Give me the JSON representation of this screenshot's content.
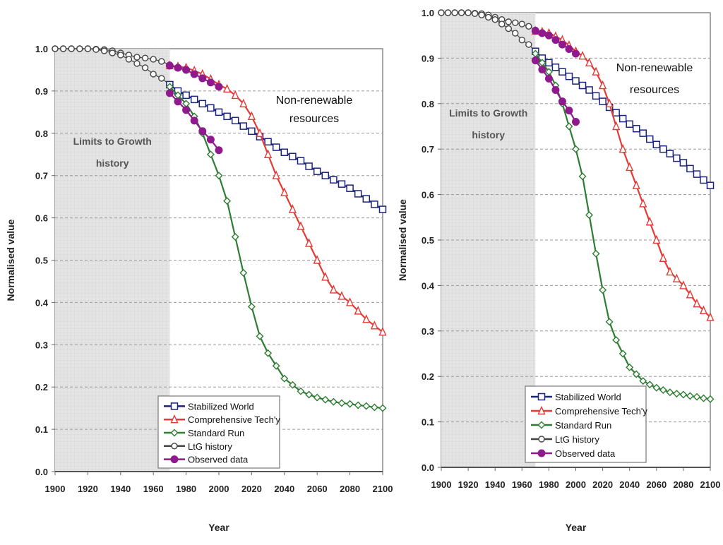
{
  "chart_data": [
    {
      "id": "left",
      "type": "line",
      "title": "",
      "xlabel": "Year",
      "ylabel": "Normalised value",
      "xlim": [
        1900,
        2100
      ],
      "ylim": [
        0.0,
        1.0
      ],
      "x_ticks": [
        "1900",
        "1920",
        "1940",
        "1960",
        "1980",
        "2000",
        "2020",
        "2040",
        "2060",
        "2080",
        "2100"
      ],
      "y_ticks": [
        "0.0",
        "0.1",
        "0.2",
        "0.3",
        "0.4",
        "0.5",
        "0.6",
        "0.7",
        "0.8",
        "0.9",
        "1.0"
      ],
      "grid": "horizontal dashed",
      "legend_position": "bottom-center",
      "annotations": {
        "panel_title_line1": "Non-renewable",
        "panel_title_line2": "resources",
        "shaded_region_label_line1": "Limits to Growth",
        "shaded_region_label_line2": "history",
        "shaded_region_range": [
          1900,
          1970
        ]
      },
      "series": [
        {
          "name": "Stabilized World",
          "color": "#1a237e",
          "marker": "square",
          "x": [
            1970,
            1975,
            1980,
            1985,
            1990,
            1995,
            2000,
            2005,
            2010,
            2015,
            2020,
            2025,
            2030,
            2035,
            2040,
            2045,
            2050,
            2055,
            2060,
            2065,
            2070,
            2075,
            2080,
            2085,
            2090,
            2095,
            2100
          ],
          "y": [
            0.915,
            0.9,
            0.89,
            0.88,
            0.87,
            0.86,
            0.85,
            0.84,
            0.83,
            0.817,
            0.805,
            0.792,
            0.78,
            0.767,
            0.755,
            0.745,
            0.735,
            0.722,
            0.71,
            0.7,
            0.69,
            0.68,
            0.67,
            0.657,
            0.645,
            0.632,
            0.62
          ]
        },
        {
          "name": "Comprehensive Tech'y",
          "color": "#e53935",
          "marker": "triangle",
          "x": [
            1970,
            1975,
            1980,
            1985,
            1990,
            1995,
            2000,
            2005,
            2010,
            2015,
            2020,
            2025,
            2030,
            2035,
            2040,
            2045,
            2050,
            2055,
            2060,
            2065,
            2070,
            2075,
            2080,
            2085,
            2090,
            2095,
            2100
          ],
          "y": [
            0.96,
            0.958,
            0.955,
            0.948,
            0.94,
            0.928,
            0.915,
            0.905,
            0.89,
            0.87,
            0.84,
            0.8,
            0.75,
            0.7,
            0.66,
            0.62,
            0.58,
            0.54,
            0.5,
            0.46,
            0.43,
            0.415,
            0.4,
            0.38,
            0.36,
            0.345,
            0.33
          ]
        },
        {
          "name": "Standard Run",
          "color": "#2e7d32",
          "marker": "diamond",
          "x": [
            1970,
            1975,
            1980,
            1985,
            1990,
            1995,
            2000,
            2005,
            2010,
            2015,
            2020,
            2025,
            2030,
            2035,
            2040,
            2045,
            2050,
            2055,
            2060,
            2065,
            2070,
            2075,
            2080,
            2085,
            2090,
            2095,
            2100
          ],
          "y": [
            0.91,
            0.89,
            0.87,
            0.84,
            0.8,
            0.75,
            0.7,
            0.64,
            0.555,
            0.47,
            0.39,
            0.32,
            0.28,
            0.25,
            0.22,
            0.205,
            0.19,
            0.182,
            0.175,
            0.17,
            0.165,
            0.162,
            0.16,
            0.157,
            0.155,
            0.152,
            0.15
          ]
        },
        {
          "name": "LtG history",
          "color": "#444444",
          "marker": "circle",
          "segments": [
            {
              "x": [
                1900,
                1905,
                1910,
                1915,
                1920,
                1925,
                1930,
                1935,
                1940,
                1945,
                1950,
                1955,
                1960,
                1965,
                1970
              ],
              "y": [
                1.0,
                1.0,
                1.0,
                1.0,
                1.0,
                0.999,
                0.998,
                0.995,
                0.99,
                0.985,
                0.98,
                0.978,
                0.975,
                0.97,
                0.962
              ]
            },
            {
              "x": [
                1900,
                1905,
                1910,
                1915,
                1920,
                1925,
                1930,
                1935,
                1940,
                1945,
                1950,
                1955,
                1960,
                1965,
                1970
              ],
              "y": [
                1.0,
                1.0,
                1.0,
                1.0,
                1.0,
                0.998,
                0.995,
                0.99,
                0.985,
                0.975,
                0.965,
                0.955,
                0.94,
                0.93,
                0.915
              ]
            }
          ]
        },
        {
          "name": "Observed data",
          "color": "#8e1a8e",
          "marker": "filled-circle",
          "segments": [
            {
              "x": [
                1970,
                1975,
                1980,
                1985,
                1990,
                1995,
                2000
              ],
              "y": [
                0.96,
                0.955,
                0.95,
                0.94,
                0.93,
                0.92,
                0.91
              ]
            },
            {
              "x": [
                1970,
                1975,
                1980,
                1985,
                1990,
                1995,
                2000
              ],
              "y": [
                0.895,
                0.875,
                0.855,
                0.83,
                0.805,
                0.785,
                0.76
              ]
            }
          ]
        }
      ]
    },
    {
      "id": "right",
      "type": "line",
      "title": "",
      "xlabel": "Year",
      "ylabel": "Normalised value",
      "xlim": [
        1900,
        2100
      ],
      "ylim": [
        0.0,
        1.0
      ],
      "x_ticks": [
        "1900",
        "1920",
        "1940",
        "1960",
        "1980",
        "2000",
        "2020",
        "2040",
        "2060",
        "2080",
        "2100"
      ],
      "y_ticks": [
        "0.0",
        "0.1",
        "0.2",
        "0.3",
        "0.4",
        "0.5",
        "0.6",
        "0.7",
        "0.8",
        "0.9",
        "1.0"
      ],
      "grid": "horizontal dashed",
      "legend_position": "bottom-center",
      "annotations": {
        "panel_title_line1": "Non-renewable",
        "panel_title_line2": "resources",
        "shaded_region_label_line1": "Limits to Growth",
        "shaded_region_label_line2": "history",
        "shaded_region_range": [
          1900,
          1970
        ]
      },
      "series_same_as": "left"
    }
  ],
  "legend": {
    "items": [
      "Stabilized World",
      "Comprehensive Tech'y",
      "Standard Run",
      "LtG history",
      "Observed data"
    ]
  }
}
